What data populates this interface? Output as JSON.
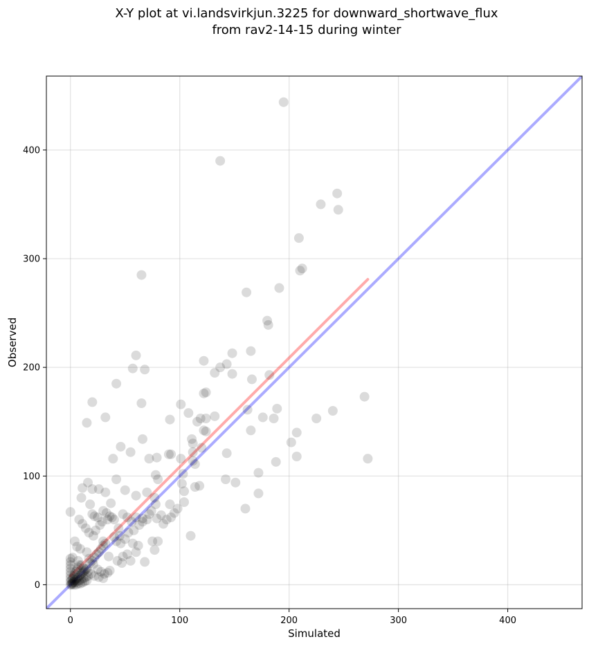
{
  "chart_data": {
    "type": "scatter",
    "title": "X-Y plot at vi.landsvirkjun.3225 for downward_shortwave_flux",
    "subtitle": "from rav2-14-15 during winter",
    "xlabel": "Simulated",
    "ylabel": "Observed",
    "xlim": [
      -22,
      468
    ],
    "ylim": [
      -22,
      468
    ],
    "xticks": [
      0,
      100,
      200,
      300,
      400
    ],
    "yticks": [
      0,
      100,
      200,
      300,
      400
    ],
    "grid": true,
    "point_color": "#000000",
    "identity_line": {
      "x": [
        -22,
        468
      ],
      "y": [
        -22,
        468
      ],
      "color": "#0000ff"
    },
    "fit_line": {
      "x": [
        0,
        272
      ],
      "y": [
        8,
        281
      ],
      "color": "#ff0000"
    },
    "points": [
      [
        195,
        444
      ],
      [
        137,
        390
      ],
      [
        244,
        360
      ],
      [
        229,
        350
      ],
      [
        245,
        345
      ],
      [
        209,
        319
      ],
      [
        210,
        289
      ],
      [
        212,
        291
      ],
      [
        65,
        285
      ],
      [
        191,
        273
      ],
      [
        161,
        269
      ],
      [
        180,
        243
      ],
      [
        181,
        239
      ],
      [
        165,
        215
      ],
      [
        148,
        213
      ],
      [
        60,
        211
      ],
      [
        122,
        206
      ],
      [
        143,
        203
      ],
      [
        137,
        200
      ],
      [
        57,
        199
      ],
      [
        68,
        198
      ],
      [
        132,
        195
      ],
      [
        148,
        194
      ],
      [
        182,
        193
      ],
      [
        166,
        189
      ],
      [
        42,
        185
      ],
      [
        122,
        176
      ],
      [
        124,
        177
      ],
      [
        20,
        168
      ],
      [
        65,
        167
      ],
      [
        101,
        166
      ],
      [
        269,
        173
      ],
      [
        189,
        162
      ],
      [
        162,
        161
      ],
      [
        240,
        160
      ],
      [
        108,
        158
      ],
      [
        132,
        155
      ],
      [
        176,
        154
      ],
      [
        225,
        153
      ],
      [
        186,
        153
      ],
      [
        32,
        154
      ],
      [
        124,
        153
      ],
      [
        119,
        153
      ],
      [
        91,
        152
      ],
      [
        116,
        150
      ],
      [
        15,
        149
      ],
      [
        165,
        142
      ],
      [
        207,
        140
      ],
      [
        124,
        141
      ],
      [
        111,
        134
      ],
      [
        122,
        142
      ],
      [
        66,
        134
      ],
      [
        112,
        130
      ],
      [
        202,
        131
      ],
      [
        120,
        126
      ],
      [
        46,
        127
      ],
      [
        112,
        122
      ],
      [
        55,
        122
      ],
      [
        143,
        121
      ],
      [
        92,
        120
      ],
      [
        90,
        120
      ],
      [
        101,
        116
      ],
      [
        272,
        116
      ],
      [
        79,
        117
      ],
      [
        207,
        118
      ],
      [
        72,
        116
      ],
      [
        39,
        116
      ],
      [
        112,
        114
      ],
      [
        188,
        113
      ],
      [
        114,
        111
      ],
      [
        172,
        103
      ],
      [
        103,
        102
      ],
      [
        78,
        101
      ],
      [
        80,
        97
      ],
      [
        42,
        97
      ],
      [
        142,
        97
      ],
      [
        151,
        94
      ],
      [
        16,
        94
      ],
      [
        102,
        93
      ],
      [
        26,
        88
      ],
      [
        114,
        90
      ],
      [
        118,
        91
      ],
      [
        20,
        88
      ],
      [
        104,
        86
      ],
      [
        172,
        84
      ],
      [
        32,
        85
      ],
      [
        70,
        85
      ],
      [
        11,
        89
      ],
      [
        50,
        87
      ],
      [
        60,
        82
      ],
      [
        77,
        80
      ],
      [
        78,
        74
      ],
      [
        91,
        74
      ],
      [
        104,
        76
      ],
      [
        10,
        80
      ],
      [
        18,
        74
      ],
      [
        37,
        75
      ],
      [
        30,
        68
      ],
      [
        20,
        65
      ],
      [
        22,
        63
      ],
      [
        25,
        62
      ],
      [
        60,
        62
      ],
      [
        79,
        61
      ],
      [
        40,
        60
      ],
      [
        8,
        60
      ],
      [
        48,
        65
      ],
      [
        66,
        61
      ],
      [
        33,
        66
      ],
      [
        11,
        56
      ],
      [
        14,
        52
      ],
      [
        17,
        48
      ],
      [
        30,
        40
      ],
      [
        44,
        52
      ],
      [
        52,
        62
      ],
      [
        56,
        58
      ],
      [
        40,
        44
      ],
      [
        57,
        38
      ],
      [
        62,
        36
      ],
      [
        35,
        26
      ],
      [
        43,
        22
      ],
      [
        15,
        30
      ],
      [
        17,
        24
      ],
      [
        21,
        19
      ],
      [
        25,
        14
      ],
      [
        28,
        12
      ],
      [
        31,
        10
      ],
      [
        34,
        11
      ],
      [
        36,
        13
      ],
      [
        47,
        20
      ],
      [
        55,
        22
      ],
      [
        68,
        21
      ],
      [
        75,
        40
      ],
      [
        77,
        32
      ],
      [
        60,
        30
      ],
      [
        52,
        28
      ],
      [
        48,
        26
      ],
      [
        4,
        40
      ],
      [
        6,
        35
      ],
      [
        9,
        33
      ],
      [
        2,
        25
      ],
      [
        7,
        22
      ],
      [
        10,
        18
      ],
      [
        12,
        15
      ],
      [
        16,
        12
      ],
      [
        19,
        10
      ],
      [
        22,
        8
      ],
      [
        26,
        7
      ],
      [
        30,
        6
      ],
      [
        0,
        67
      ],
      [
        160,
        70
      ],
      [
        110,
        45
      ],
      [
        80,
        40
      ],
      [
        0,
        0
      ],
      [
        1,
        1
      ],
      [
        2,
        2
      ],
      [
        3,
        3
      ],
      [
        4,
        4
      ],
      [
        5,
        5
      ],
      [
        6,
        6
      ],
      [
        7,
        7
      ],
      [
        8,
        8
      ],
      [
        9,
        9
      ],
      [
        10,
        10
      ],
      [
        11,
        11
      ],
      [
        12,
        12
      ],
      [
        13,
        13
      ],
      [
        14,
        14
      ],
      [
        15,
        15
      ],
      [
        1,
        4
      ],
      [
        2,
        6
      ],
      [
        3,
        8
      ],
      [
        4,
        10
      ],
      [
        5,
        12
      ],
      [
        6,
        14
      ],
      [
        7,
        16
      ],
      [
        8,
        18
      ],
      [
        2,
        1
      ],
      [
        4,
        2
      ],
      [
        6,
        3
      ],
      [
        8,
        4
      ],
      [
        10,
        5
      ],
      [
        12,
        6
      ],
      [
        14,
        7
      ],
      [
        16,
        8
      ],
      [
        0,
        3
      ],
      [
        0,
        6
      ],
      [
        0,
        9
      ],
      [
        0,
        12
      ],
      [
        0,
        15
      ],
      [
        0,
        18
      ],
      [
        0,
        21
      ],
      [
        0,
        24
      ],
      [
        1,
        0
      ],
      [
        3,
        0
      ],
      [
        5,
        0
      ],
      [
        7,
        1
      ],
      [
        9,
        1
      ],
      [
        11,
        2
      ],
      [
        13,
        3
      ],
      [
        15,
        4
      ],
      [
        18,
        20
      ],
      [
        20,
        22
      ],
      [
        22,
        25
      ],
      [
        24,
        28
      ],
      [
        26,
        30
      ],
      [
        28,
        33
      ],
      [
        30,
        36
      ],
      [
        32,
        38
      ],
      [
        21,
        45
      ],
      [
        23,
        50
      ],
      [
        27,
        55
      ],
      [
        29,
        58
      ],
      [
        34,
        60
      ],
      [
        36,
        63
      ],
      [
        38,
        62
      ],
      [
        45,
        45
      ],
      [
        42,
        40
      ],
      [
        46,
        38
      ],
      [
        50,
        42
      ],
      [
        53,
        48
      ],
      [
        58,
        50
      ],
      [
        63,
        55
      ],
      [
        66,
        58
      ],
      [
        70,
        60
      ],
      [
        72,
        65
      ],
      [
        74,
        68
      ],
      [
        83,
        64
      ],
      [
        85,
        56
      ],
      [
        88,
        60
      ],
      [
        92,
        62
      ],
      [
        95,
        66
      ],
      [
        98,
        70
      ]
    ]
  }
}
